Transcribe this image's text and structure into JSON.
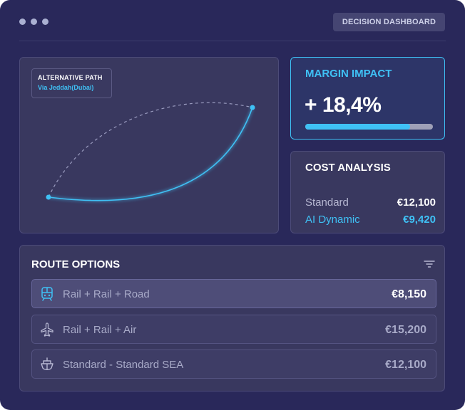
{
  "window": {
    "title": "DECISION DASHBOARD"
  },
  "map": {
    "label_title": "ALTERNATIVE PATH",
    "label_subtitle": "Via Jeddah(Dubai)"
  },
  "margin": {
    "title": "MARGIN IMPACT",
    "value": "+ 18,4%",
    "progress_fraction": 0.82
  },
  "cost": {
    "title": "COST ANALYSIS",
    "rows": [
      {
        "label": "Standard",
        "value": "€12,100"
      },
      {
        "label": "AI Dynamic",
        "value": "€9,420"
      }
    ]
  },
  "routes": {
    "title": "ROUTE OPTIONS",
    "items": [
      {
        "name": "Rail + Rail + Road",
        "price": "€8,150",
        "icon": "train-icon",
        "active": true
      },
      {
        "name": "Rail + Rail + Air",
        "price": "€15,200",
        "icon": "airplane-icon",
        "active": false
      },
      {
        "name": "Standard - Standard SEA",
        "price": "€12,100",
        "icon": "ship-icon",
        "active": false
      }
    ]
  },
  "colors": {
    "background": "#29285a",
    "accent": "#3fc1f5",
    "card": "#39385f"
  }
}
